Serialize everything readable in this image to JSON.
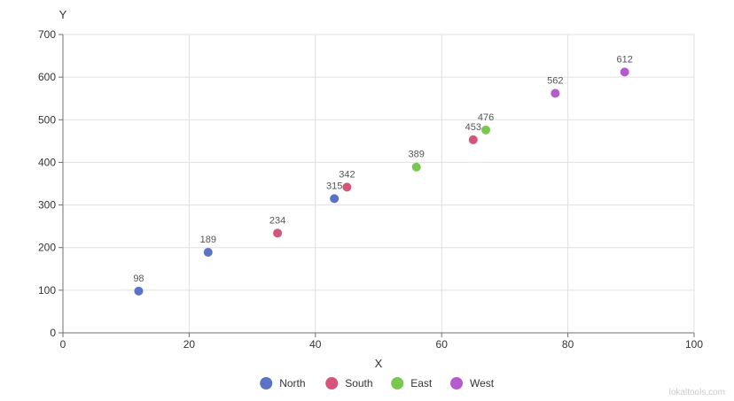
{
  "chart_data": {
    "type": "scatter",
    "title": "",
    "xlabel": "X",
    "ylabel": "Y",
    "xlim": [
      0,
      100
    ],
    "ylim": [
      0,
      700
    ],
    "x_ticks": [
      0,
      20,
      40,
      60,
      80,
      100
    ],
    "y_ticks": [
      0,
      100,
      200,
      300,
      400,
      500,
      600,
      700
    ],
    "grid": true,
    "legend_position": "bottom-center",
    "series": [
      {
        "name": "North",
        "color": "#5b73c4",
        "points": [
          {
            "x": 12,
            "y": 98,
            "label": "98"
          },
          {
            "x": 23,
            "y": 189,
            "label": "189"
          },
          {
            "x": 43,
            "y": 315,
            "label": "315"
          }
        ]
      },
      {
        "name": "South",
        "color": "#d4547a",
        "points": [
          {
            "x": 34,
            "y": 234,
            "label": "234"
          },
          {
            "x": 45,
            "y": 342,
            "label": "342"
          },
          {
            "x": 65,
            "y": 453,
            "label": "453"
          }
        ]
      },
      {
        "name": "East",
        "color": "#78c850",
        "points": [
          {
            "x": 56,
            "y": 389,
            "label": "389"
          },
          {
            "x": 67,
            "y": 476,
            "label": "476"
          }
        ]
      },
      {
        "name": "West",
        "color": "#b65ad0",
        "points": [
          {
            "x": 78,
            "y": 562,
            "label": "562"
          },
          {
            "x": 89,
            "y": 612,
            "label": "612"
          }
        ]
      }
    ]
  },
  "watermark": "lokaltools.com"
}
